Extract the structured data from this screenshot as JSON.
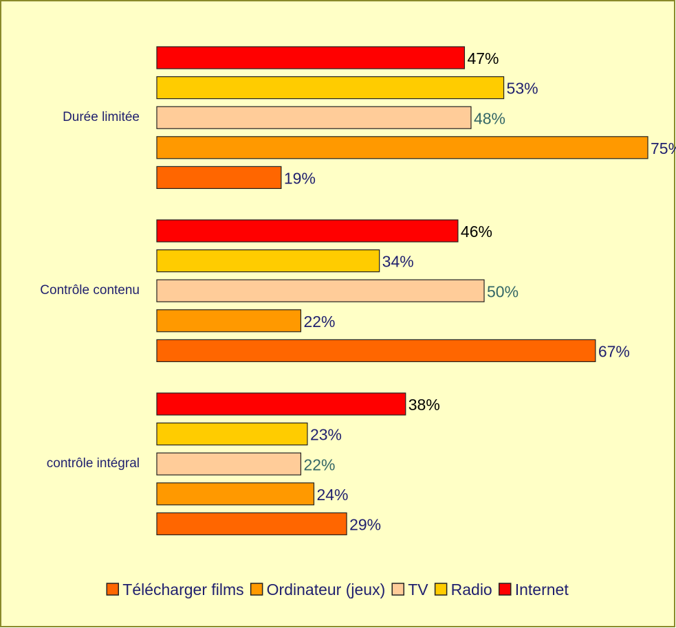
{
  "chart_data": {
    "type": "bar",
    "orientation": "horizontal",
    "categories": [
      "Durée limitée",
      "Contrôle contenu",
      "contrôle intégral"
    ],
    "series": [
      {
        "name": "Télécharger films",
        "color": "#ff6600",
        "label_color": "#1f1f6e",
        "values": [
          19,
          67,
          29
        ],
        "value_labels": [
          "19%",
          "67%",
          "29%"
        ]
      },
      {
        "name": "Ordinateur (jeux)",
        "color": "#ff9900",
        "label_color": "#1f1f6e",
        "values": [
          75,
          22,
          24
        ],
        "value_labels": [
          "75%",
          "22%",
          "24%"
        ]
      },
      {
        "name": "TV",
        "color": "#ffcc99",
        "label_color": "#336666",
        "values": [
          48,
          50,
          22
        ],
        "value_labels": [
          "48%",
          "50%",
          "22%"
        ]
      },
      {
        "name": "Radio",
        "color": "#ffcc00",
        "label_color": "#1f1f6e",
        "values": [
          53,
          34,
          23
        ],
        "value_labels": [
          "53%",
          "34%",
          "23%"
        ]
      },
      {
        "name": "Internet",
        "color": "#ff0000",
        "label_color": "#000000",
        "values": [
          47,
          46,
          38
        ],
        "value_labels": [
          "47%",
          "46%",
          "38%"
        ]
      }
    ],
    "legend": "bottom"
  }
}
